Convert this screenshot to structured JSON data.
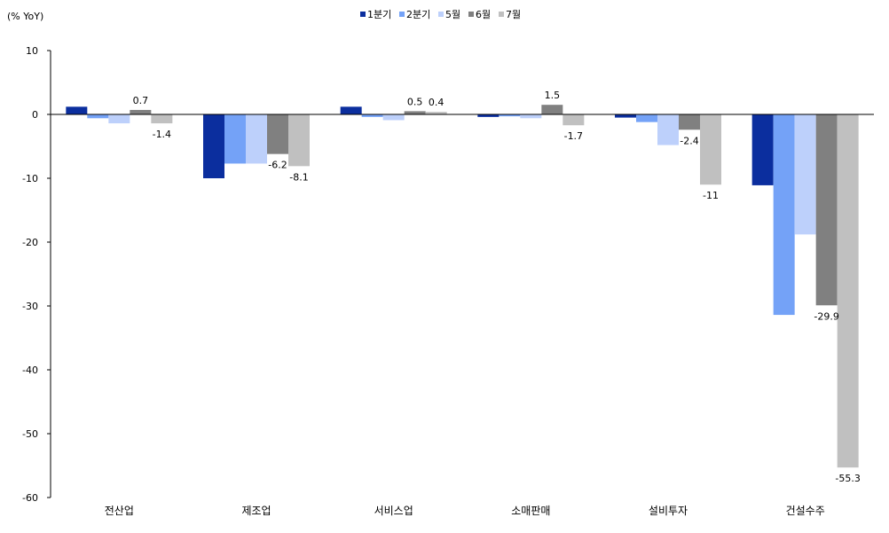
{
  "chart_data": {
    "type": "bar",
    "unit_label": "(% YoY)",
    "categories": [
      "전산업",
      "제조업",
      "서비스업",
      "소매판매",
      "설비투자",
      "건설수주"
    ],
    "series": [
      {
        "name": "1분기",
        "color": "#0b2e9e",
        "values": [
          1.2,
          -10.0,
          1.2,
          -0.4,
          -0.5,
          -11.1
        ]
      },
      {
        "name": "2분기",
        "color": "#74a2f7",
        "values": [
          -0.6,
          -7.7,
          -0.4,
          -0.3,
          -1.2,
          -31.4
        ]
      },
      {
        "name": "5월",
        "color": "#bdd0fb",
        "values": [
          -1.4,
          -7.7,
          -0.9,
          -0.6,
          -4.8,
          -18.8
        ]
      },
      {
        "name": "6월",
        "color": "#808080",
        "values": [
          0.7,
          -6.2,
          0.5,
          1.5,
          -2.4,
          -29.9
        ]
      },
      {
        "name": "7월",
        "color": "#c0c0c0",
        "values": [
          -1.4,
          -8.1,
          0.4,
          -1.7,
          -11.0,
          -55.3
        ]
      }
    ],
    "data_labels": [
      {
        "series": 3,
        "category": 0,
        "text": "0.7"
      },
      {
        "series": 4,
        "category": 0,
        "text": "-1.4"
      },
      {
        "series": 3,
        "category": 1,
        "text": "-6.2"
      },
      {
        "series": 4,
        "category": 1,
        "text": "-8.1"
      },
      {
        "series": 3,
        "category": 2,
        "text": "0.5"
      },
      {
        "series": 4,
        "category": 2,
        "text": "0.4"
      },
      {
        "series": 3,
        "category": 3,
        "text": "1.5"
      },
      {
        "series": 4,
        "category": 3,
        "text": "-1.7"
      },
      {
        "series": 3,
        "category": 4,
        "text": "-2.4"
      },
      {
        "series": 4,
        "category": 4,
        "text": "-11"
      },
      {
        "series": 3,
        "category": 5,
        "text": "-29.9"
      },
      {
        "series": 4,
        "category": 5,
        "text": "-55.3"
      }
    ],
    "yticks": [
      10,
      0,
      -10,
      -20,
      -30,
      -40,
      -50,
      -60
    ],
    "ylim": [
      -60,
      10
    ],
    "legend_position": "top-center",
    "grid": false
  }
}
